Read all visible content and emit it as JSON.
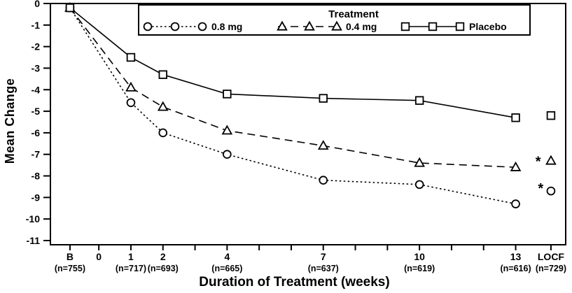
{
  "figure": {
    "background": "#ffffff",
    "ink_color": "#000000"
  },
  "chart_data": {
    "type": "line",
    "title": "",
    "xlabel": "Duration of Treatment (weeks)",
    "ylabel": "Mean Change",
    "ylim": [
      -11,
      0
    ],
    "yticks": [
      0,
      -1,
      -2,
      -3,
      -4,
      -5,
      -6,
      -7,
      -8,
      -9,
      -10,
      -11
    ],
    "x_range_weeks": [
      -1.51,
      14.56
    ],
    "x_minor_tick_weeks": [
      -0.9,
      0,
      1,
      2,
      3,
      4,
      5,
      6,
      7,
      8,
      9,
      10,
      11,
      12,
      13,
      14.1
    ],
    "x_points": [
      {
        "label": "B",
        "week": -0.9,
        "n": "(n=755)"
      },
      {
        "label": "1",
        "week": 1,
        "n": "(n=717)"
      },
      {
        "label": "2",
        "week": 2,
        "n": "(n=693)"
      },
      {
        "label": "4",
        "week": 4,
        "n": "(n=665)"
      },
      {
        "label": "7",
        "week": 7,
        "n": "(n=637)"
      },
      {
        "label": "10",
        "week": 10,
        "n": "(n=619)"
      },
      {
        "label": "13",
        "week": 13,
        "n": "(n=616)"
      },
      {
        "label": "LOCF",
        "week": 14.1,
        "n": "(n=729)"
      }
    ],
    "x_extra_labels": [
      {
        "label": "0",
        "week": 0
      }
    ],
    "legend": {
      "title": "Treatment",
      "position": "top-center-inside"
    },
    "grid": false,
    "locf_detached": true,
    "series": [
      {
        "name": "0.8 mg",
        "marker": "circle",
        "line": "dotted",
        "values": [
          -0.2,
          -4.6,
          -6.0,
          -7.0,
          -8.2,
          -8.4,
          -9.3,
          -8.7
        ]
      },
      {
        "name": "0.4 mg",
        "marker": "triangle",
        "line": "dashed",
        "values": [
          -0.2,
          -3.9,
          -4.8,
          -5.9,
          -6.6,
          -7.4,
          -7.6,
          -7.3
        ]
      },
      {
        "name": "Placebo",
        "marker": "square",
        "line": "solid",
        "values": [
          -0.2,
          -2.5,
          -3.3,
          -4.2,
          -4.4,
          -4.5,
          -5.3,
          -5.2
        ]
      }
    ],
    "annotations": [
      {
        "text": "*",
        "week": 13.7,
        "value": -7.25
      },
      {
        "text": "*",
        "week": 13.78,
        "value": -8.5
      }
    ]
  }
}
